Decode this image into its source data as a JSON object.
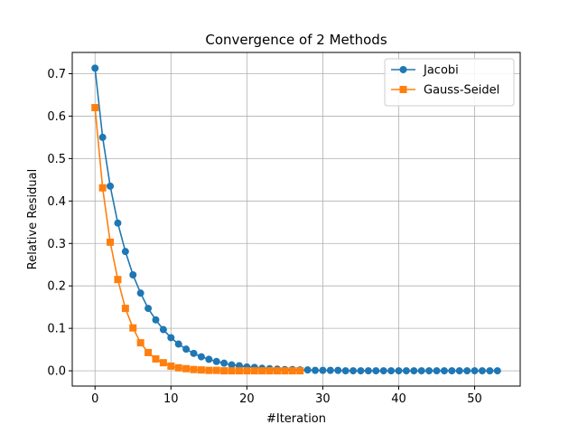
{
  "chart_data": {
    "type": "line",
    "title": "Convergence of 2 Methods",
    "xlabel": "#Iteration",
    "ylabel": "Relative Residual",
    "xlim": [
      -3,
      56
    ],
    "ylim": [
      -0.036,
      0.75
    ],
    "xticks": [
      0,
      10,
      20,
      30,
      40,
      50
    ],
    "yticks": [
      0.0,
      0.1,
      0.2,
      0.3,
      0.4,
      0.5,
      0.6,
      0.7
    ],
    "grid": true,
    "legend_position": "top-right",
    "series": [
      {
        "name": "Jacobi",
        "color": "#1f77b4",
        "marker": "circle",
        "x": [
          0,
          1,
          2,
          3,
          4,
          5,
          6,
          7,
          8,
          9,
          10,
          11,
          12,
          13,
          14,
          15,
          16,
          17,
          18,
          19,
          20,
          21,
          22,
          23,
          24,
          25,
          26,
          27,
          28,
          29,
          30,
          31,
          32,
          33,
          34,
          35,
          36,
          37,
          38,
          39,
          40,
          41,
          42,
          43,
          44,
          45,
          46,
          47,
          48,
          49,
          50,
          51,
          52,
          53
        ],
        "values": [
          0.713,
          0.55,
          0.435,
          0.348,
          0.281,
          0.226,
          0.183,
          0.147,
          0.12,
          0.097,
          0.078,
          0.063,
          0.051,
          0.041,
          0.033,
          0.027,
          0.022,
          0.018,
          0.014,
          0.012,
          0.009,
          0.008,
          0.006,
          0.005,
          0.004,
          0.003,
          0.003,
          0.002,
          0.002,
          0.001,
          0.001,
          0.001,
          0.001,
          0.0,
          0.0,
          0.0,
          0.0,
          0.0,
          0.0,
          0.0,
          0.0,
          0.0,
          0.0,
          0.0,
          0.0,
          0.0,
          0.0,
          0.0,
          0.0,
          0.0,
          0.0,
          0.0,
          0.0,
          0.0
        ]
      },
      {
        "name": "Gauss-Seidel",
        "color": "#ff7f0e",
        "marker": "square",
        "x": [
          0,
          1,
          2,
          3,
          4,
          5,
          6,
          7,
          8,
          9,
          10,
          11,
          12,
          13,
          14,
          15,
          16,
          17,
          18,
          19,
          20,
          21,
          22,
          23,
          24,
          25,
          26,
          27
        ],
        "values": [
          0.62,
          0.431,
          0.303,
          0.215,
          0.147,
          0.101,
          0.066,
          0.043,
          0.028,
          0.019,
          0.011,
          0.007,
          0.005,
          0.003,
          0.002,
          0.001,
          0.001,
          0.0,
          0.0,
          0.0,
          0.0,
          0.0,
          0.0,
          0.0,
          0.0,
          0.0,
          0.0,
          0.0
        ]
      }
    ]
  }
}
